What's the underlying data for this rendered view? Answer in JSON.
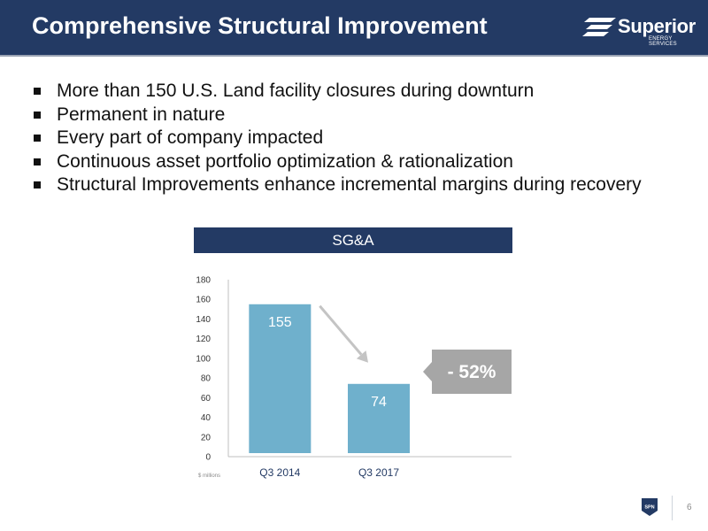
{
  "header": {
    "title": "Comprehensive Structural Improvement",
    "logo_word": "Superior",
    "logo_sub": "ENERGY SERVICES"
  },
  "bullets": [
    "More than 150 U.S. Land facility closures during downturn",
    "Permanent in nature",
    "Every part of company impacted",
    "Continuous asset portfolio optimization & rationalization",
    "Structural Improvements enhance incremental margins during recovery"
  ],
  "chart_banner": "SG&A",
  "chart_data": {
    "type": "bar",
    "title": "SG&A",
    "categories": [
      "Q3 2014",
      "Q3 2017"
    ],
    "values": [
      155,
      74
    ],
    "data_labels": [
      "155",
      "74"
    ],
    "unit_label": "$ millions",
    "ylim": [
      0,
      180
    ],
    "yticks": [
      0,
      20,
      40,
      60,
      80,
      100,
      120,
      140,
      160,
      180
    ],
    "grid": false,
    "annotation": "- 52%",
    "bar_color": "#6fb0cc",
    "callout_color": "#a6a6a6"
  },
  "footer": {
    "badge": "SPN",
    "page_number": "6"
  },
  "colors": {
    "navy": "#233a64",
    "bar": "#6fb0cc",
    "callout": "#a6a6a6"
  }
}
